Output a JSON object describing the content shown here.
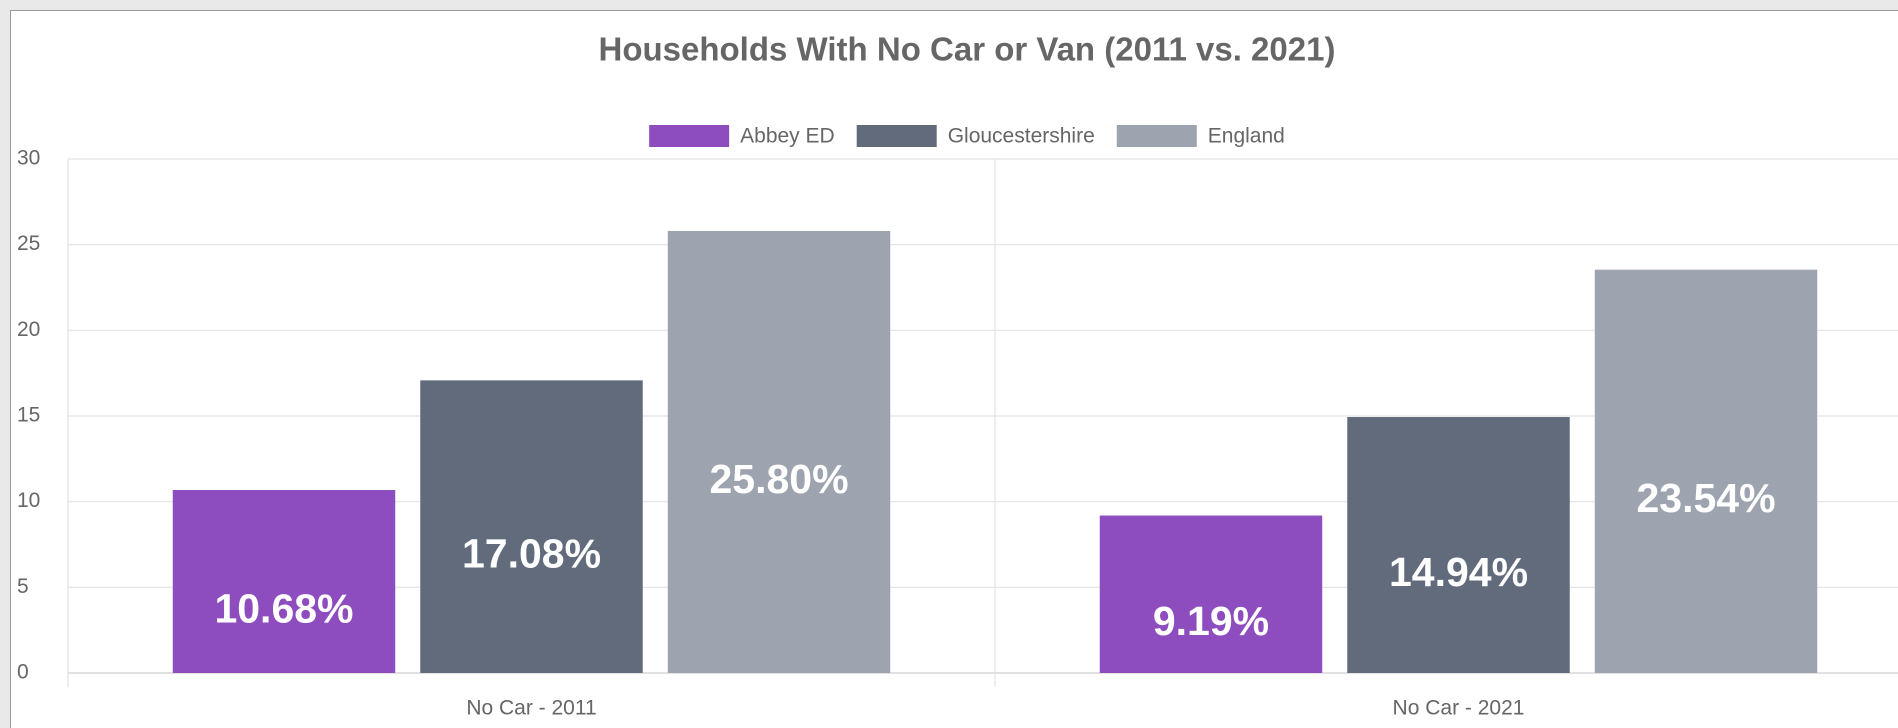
{
  "chart_data": {
    "type": "bar",
    "title": "Households With No Car or Van (2011 vs. 2021)",
    "categories": [
      "No Car - 2011",
      "No Car - 2021"
    ],
    "series": [
      {
        "name": "Abbey ED",
        "color": "#8e4dbf",
        "values": [
          10.68,
          9.19
        ],
        "value_labels": [
          "10.68%",
          "9.19%"
        ]
      },
      {
        "name": "Gloucestershire",
        "color": "#616b7c",
        "values": [
          17.08,
          14.94
        ],
        "value_labels": [
          "17.08%",
          "14.94%"
        ]
      },
      {
        "name": "England",
        "color": "#9ea3b0",
        "values": [
          25.8,
          23.54
        ],
        "value_labels": [
          "25.80%",
          "23.54%"
        ]
      }
    ],
    "ylim": [
      0,
      30
    ],
    "yticks": [
      0,
      5,
      10,
      15,
      20,
      25,
      30
    ],
    "grid": true,
    "legend": "top"
  }
}
